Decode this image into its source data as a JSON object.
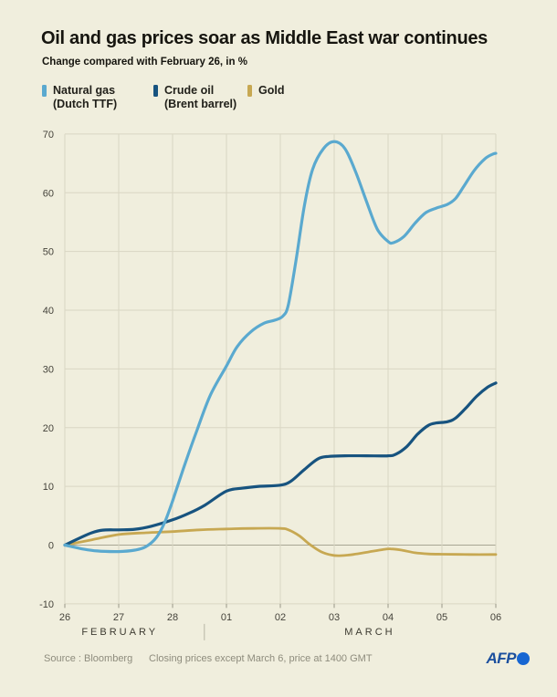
{
  "header": {
    "title": "Oil and gas prices soar as Middle East war continues",
    "subtitle": "Change compared with February 26, in %"
  },
  "legend": [
    {
      "label": "Natural gas",
      "sublabel": "(Dutch TTF)",
      "color": "#5aa9cf"
    },
    {
      "label": "Crude oil",
      "sublabel": "(Brent barrel)",
      "color": "#17537f"
    },
    {
      "label": "Gold",
      "sublabel": "",
      "color": "#c7a852"
    }
  ],
  "footer": {
    "source": "Source : Bloomberg",
    "note": "Closing prices except March 6, price at 1400 GMT",
    "logo_text": "AFP"
  },
  "chart_data": {
    "type": "line",
    "title": "Oil and gas prices soar as Middle East war continues",
    "ylabel": "Change compared with February 26, in %",
    "ylim": [
      -10,
      70
    ],
    "yticks": [
      -10,
      0,
      10,
      20,
      30,
      40,
      50,
      60,
      70
    ],
    "x_tick_labels": [
      "26",
      "27",
      "28",
      "01",
      "02",
      "03",
      "04",
      "05",
      "06"
    ],
    "months": [
      {
        "label": "FEBRUARY",
        "center_day": 1.02
      },
      {
        "label": "MARCH",
        "center_day": 5.66
      }
    ],
    "month_divider_day": 2.59,
    "grid": "on",
    "legend_position": "top",
    "colors": {
      "grid": "#d9d6c3",
      "zero_line": "#a8a593",
      "tick": "#989686",
      "divider": "#b9b6a5"
    },
    "series": [
      {
        "id": "gold",
        "name": "Gold",
        "color": "#c7a852",
        "width": 2.8,
        "points": [
          [
            0,
            0
          ],
          [
            0.5,
            0.9
          ],
          [
            1,
            1.8
          ],
          [
            1.5,
            2.1
          ],
          [
            2,
            2.3
          ],
          [
            2.5,
            2.6
          ],
          [
            3,
            2.75
          ],
          [
            3.5,
            2.85
          ],
          [
            4,
            2.85
          ],
          [
            4.15,
            2.6
          ],
          [
            4.35,
            1.6
          ],
          [
            4.55,
            0.1
          ],
          [
            4.75,
            -1.1
          ],
          [
            4.95,
            -1.7
          ],
          [
            5.1,
            -1.8
          ],
          [
            5.35,
            -1.6
          ],
          [
            5.65,
            -1.15
          ],
          [
            5.95,
            -0.7
          ],
          [
            6.05,
            -0.65
          ],
          [
            6.25,
            -0.85
          ],
          [
            6.5,
            -1.3
          ],
          [
            6.75,
            -1.5
          ],
          [
            7,
            -1.55
          ],
          [
            7.5,
            -1.6
          ],
          [
            8,
            -1.6
          ]
        ]
      },
      {
        "id": "crude-oil",
        "name": "Crude oil (Brent barrel)",
        "color": "#17537f",
        "width": 3.2,
        "points": [
          [
            0,
            0
          ],
          [
            0.25,
            1.1
          ],
          [
            0.5,
            2.1
          ],
          [
            0.7,
            2.55
          ],
          [
            1,
            2.6
          ],
          [
            1.3,
            2.7
          ],
          [
            1.6,
            3.2
          ],
          [
            2,
            4.3
          ],
          [
            2.3,
            5.4
          ],
          [
            2.6,
            6.8
          ],
          [
            3,
            9.2
          ],
          [
            3.3,
            9.7
          ],
          [
            3.6,
            10
          ],
          [
            4,
            10.2
          ],
          [
            4.2,
            10.9
          ],
          [
            4.45,
            12.9
          ],
          [
            4.7,
            14.7
          ],
          [
            4.9,
            15.1
          ],
          [
            5.2,
            15.2
          ],
          [
            5.6,
            15.2
          ],
          [
            6,
            15.2
          ],
          [
            6.15,
            15.5
          ],
          [
            6.35,
            16.8
          ],
          [
            6.55,
            18.9
          ],
          [
            6.75,
            20.4
          ],
          [
            6.9,
            20.8
          ],
          [
            7.1,
            21
          ],
          [
            7.25,
            21.6
          ],
          [
            7.45,
            23.4
          ],
          [
            7.65,
            25.4
          ],
          [
            7.85,
            26.9
          ],
          [
            8,
            27.6
          ]
        ]
      },
      {
        "id": "natural-gas",
        "name": "Natural gas (Dutch TTF)",
        "color": "#5aa9cf",
        "width": 3.2,
        "points": [
          [
            0,
            0
          ],
          [
            0.3,
            -0.6
          ],
          [
            0.6,
            -1
          ],
          [
            1,
            -1.1
          ],
          [
            1.3,
            -0.85
          ],
          [
            1.5,
            -0.3
          ],
          [
            1.7,
            1.3
          ],
          [
            1.85,
            3.8
          ],
          [
            2,
            7.5
          ],
          [
            2.2,
            13
          ],
          [
            2.45,
            19.5
          ],
          [
            2.7,
            25.5
          ],
          [
            3,
            30.5
          ],
          [
            3.2,
            33.8
          ],
          [
            3.45,
            36.3
          ],
          [
            3.7,
            37.8
          ],
          [
            3.9,
            38.3
          ],
          [
            4.05,
            39
          ],
          [
            4.15,
            41
          ],
          [
            4.3,
            49
          ],
          [
            4.45,
            58
          ],
          [
            4.6,
            64
          ],
          [
            4.8,
            67.5
          ],
          [
            5,
            68.7
          ],
          [
            5.2,
            67.5
          ],
          [
            5.4,
            63.5
          ],
          [
            5.6,
            58.5
          ],
          [
            5.8,
            53.8
          ],
          [
            6,
            51.7
          ],
          [
            6.1,
            51.5
          ],
          [
            6.3,
            52.6
          ],
          [
            6.5,
            54.8
          ],
          [
            6.7,
            56.6
          ],
          [
            6.9,
            57.4
          ],
          [
            7.1,
            58
          ],
          [
            7.25,
            59
          ],
          [
            7.4,
            61
          ],
          [
            7.6,
            63.8
          ],
          [
            7.8,
            65.8
          ],
          [
            7.95,
            66.6
          ],
          [
            8,
            66.7
          ]
        ]
      }
    ]
  }
}
